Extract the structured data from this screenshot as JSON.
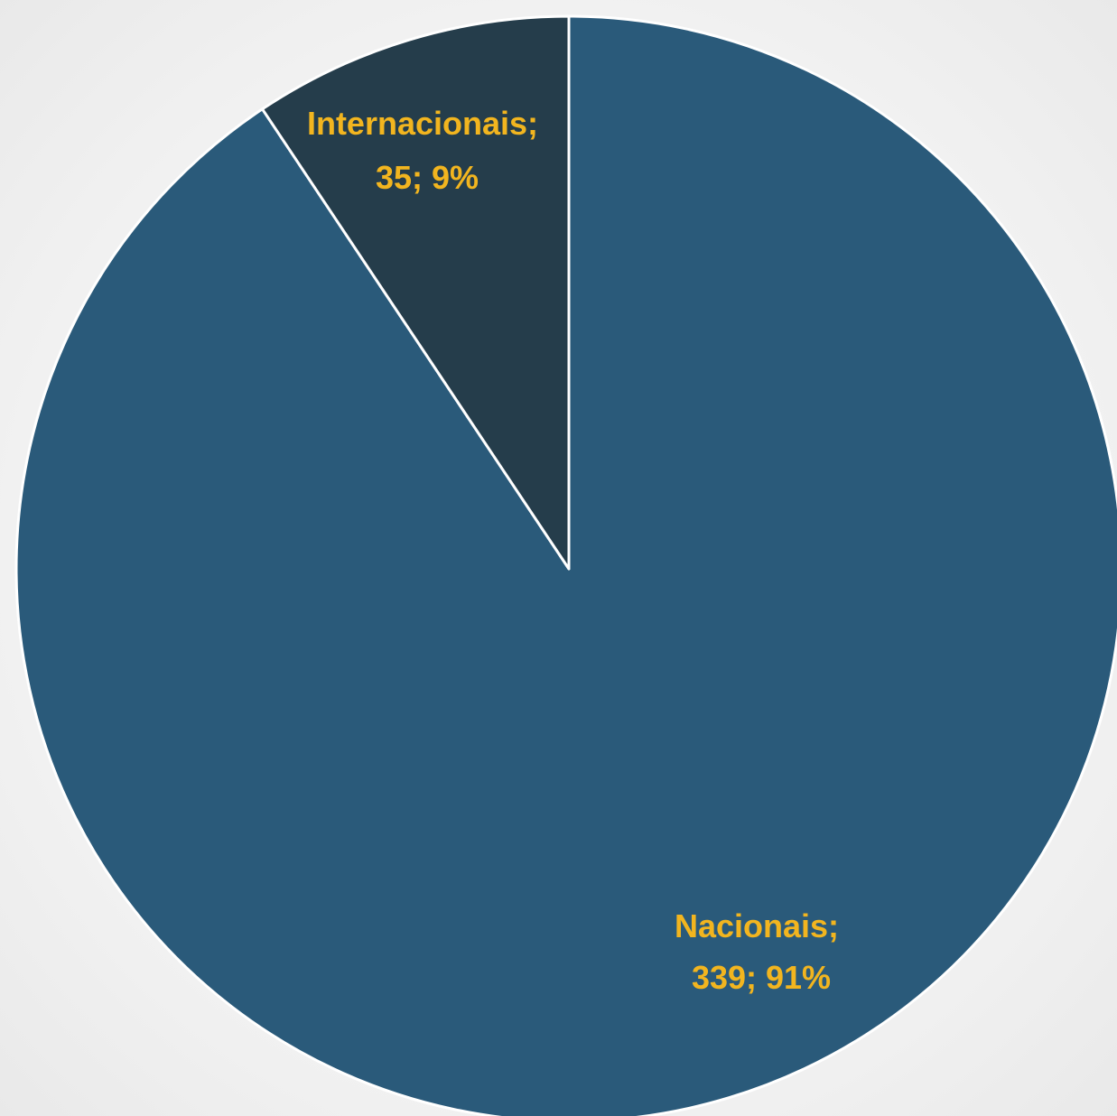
{
  "chart_data": {
    "type": "pie",
    "title": "",
    "start_angle_deg": 0,
    "direction": "clockwise",
    "slices": [
      {
        "label": "Nacionais",
        "value": 339,
        "percent": "91%",
        "color": "#2a5a7a"
      },
      {
        "label": "Internacionais",
        "value": 35,
        "percent": "9%",
        "color": "#253d4b"
      }
    ],
    "label_color": "#f2b51f",
    "data_labels": [
      {
        "line1": "Nacionais;",
        "line2": "339; 91%"
      },
      {
        "line1": "Internacionais;",
        "line2": "35; 9%"
      }
    ]
  }
}
